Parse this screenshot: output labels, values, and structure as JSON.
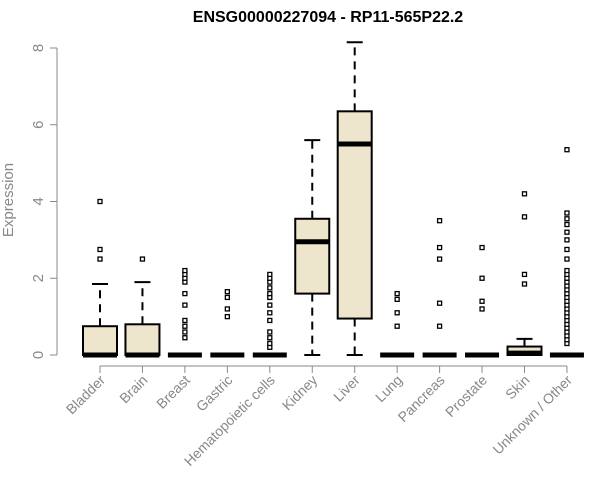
{
  "chart_data": {
    "type": "boxplot",
    "title": "ENSG00000227094 - RP11-565P22.2",
    "ylabel": "Expression",
    "xlabel": "",
    "ylim": [
      0,
      8.2
    ],
    "yticks": [
      0,
      2,
      4,
      6,
      8
    ],
    "box_color": "#EDE6CD",
    "categories": [
      "Bladder",
      "Brain",
      "Breast",
      "Gastric",
      "Hematopoietic cells",
      "Kidney",
      "Liver",
      "Lung",
      "Pancreas",
      "Prostate",
      "Skin",
      "Unknown / Other"
    ],
    "boxes": [
      {
        "name": "Bladder",
        "whisker_low": 0,
        "q1": 0,
        "median": 0,
        "q3": 0.75,
        "whisker_high": 1.85,
        "outliers": [
          2.5,
          2.75,
          4.0
        ]
      },
      {
        "name": "Brain",
        "whisker_low": 0,
        "q1": 0,
        "median": 0,
        "q3": 0.8,
        "whisker_high": 1.9,
        "outliers": [
          2.5
        ]
      },
      {
        "name": "Breast",
        "whisker_low": 0,
        "q1": 0,
        "median": 0,
        "q3": 0,
        "whisker_high": 0,
        "outliers": [
          0.45,
          0.6,
          0.75,
          0.9,
          1.3,
          1.6,
          1.9,
          2.0,
          2.1,
          2.2
        ]
      },
      {
        "name": "Gastric",
        "whisker_low": 0,
        "q1": 0,
        "median": 0,
        "q3": 0,
        "whisker_high": 0,
        "outliers": [
          1.0,
          1.2,
          1.5,
          1.65
        ]
      },
      {
        "name": "Hematopoietic cells",
        "whisker_low": 0,
        "q1": 0,
        "median": 0,
        "q3": 0,
        "whisker_high": 0,
        "outliers": [
          0.2,
          0.3,
          0.45,
          0.6,
          0.9,
          1.1,
          1.3,
          1.5,
          1.6,
          1.75,
          1.9,
          2.0,
          2.1
        ]
      },
      {
        "name": "Kidney",
        "whisker_low": 0,
        "q1": 1.6,
        "median": 2.95,
        "q3": 3.55,
        "whisker_high": 5.6,
        "outliers": []
      },
      {
        "name": "Liver",
        "whisker_low": 0,
        "q1": 0.95,
        "median": 5.5,
        "q3": 6.35,
        "whisker_high": 8.15,
        "outliers": []
      },
      {
        "name": "Lung",
        "whisker_low": 0,
        "q1": 0,
        "median": 0,
        "q3": 0,
        "whisker_high": 0,
        "outliers": [
          0.75,
          1.1,
          1.45,
          1.6
        ]
      },
      {
        "name": "Pancreas",
        "whisker_low": 0,
        "q1": 0,
        "median": 0,
        "q3": 0,
        "whisker_high": 0,
        "outliers": [
          0.75,
          1.35,
          2.5,
          2.8,
          3.5
        ]
      },
      {
        "name": "Prostate",
        "whisker_low": 0,
        "q1": 0,
        "median": 0,
        "q3": 0,
        "whisker_high": 0,
        "outliers": [
          1.2,
          1.4,
          2.0,
          2.8
        ]
      },
      {
        "name": "Skin",
        "whisker_low": 0,
        "q1": 0,
        "median": 0.05,
        "q3": 0.22,
        "whisker_high": 0.42,
        "outliers": [
          1.85,
          2.1,
          3.6,
          4.2
        ]
      },
      {
        "name": "Unknown / Other",
        "whisker_low": 0,
        "q1": 0,
        "median": 0,
        "q3": 0,
        "whisker_high": 0,
        "outliers": [
          0.3,
          0.4,
          0.5,
          0.6,
          0.7,
          0.8,
          0.9,
          1.0,
          1.1,
          1.2,
          1.3,
          1.4,
          1.5,
          1.6,
          1.7,
          1.8,
          1.9,
          2.0,
          2.1,
          2.2,
          2.5,
          2.75,
          3.0,
          3.2,
          3.4,
          3.55,
          3.7,
          5.35
        ]
      }
    ]
  }
}
